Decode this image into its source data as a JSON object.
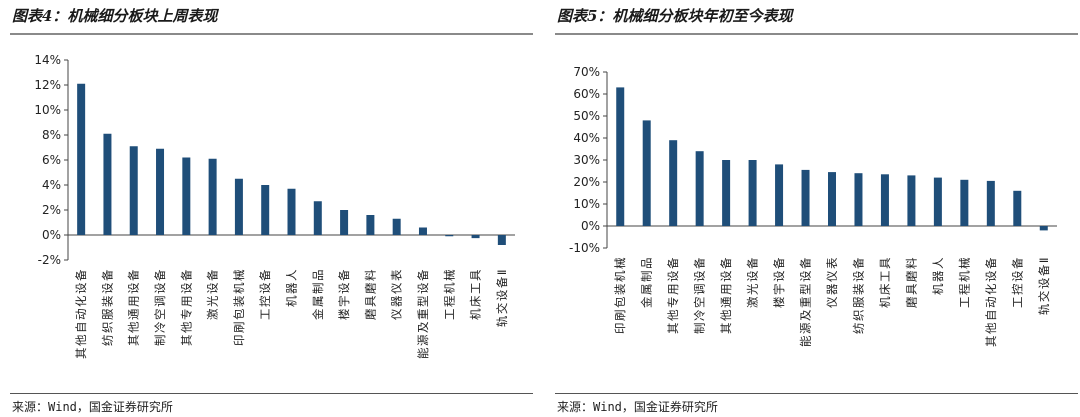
{
  "charts": [
    {
      "title": "图表4：机械细分板块上周表现",
      "source": "来源：Wind，国金证券研究所",
      "color": "#1f4e79",
      "chart_data": {
        "type": "bar",
        "title": "图表4：机械细分板块上周表现",
        "categories": [
          "其他自动化设备",
          "纺织服装设备",
          "其他通用设备",
          "制冷空调设备",
          "其他专用设备",
          "激光设备",
          "印刷包装机械",
          "工控设备",
          "机器人",
          "金属制品",
          "楼宇设备",
          "磨具磨料",
          "仪器仪表",
          "能源及重型设备",
          "工程机械",
          "机床工具",
          "轨交设备Ⅱ"
        ],
        "values": [
          12.1,
          8.1,
          7.1,
          6.9,
          6.2,
          6.1,
          4.5,
          4.0,
          3.7,
          2.7,
          2.0,
          1.6,
          1.3,
          0.6,
          -0.1,
          -0.25,
          -0.8
        ],
        "ylim": [
          -2,
          14
        ],
        "yticks": [
          -2,
          0,
          2,
          4,
          6,
          8,
          10,
          12,
          14
        ],
        "tick_format": "percent",
        "xlabel": "",
        "ylabel": ""
      }
    },
    {
      "title": "图表5：机械细分板块年初至今表现",
      "source": "来源：Wind，国金证券研究所",
      "color": "#1f4e79",
      "chart_data": {
        "type": "bar",
        "title": "图表5：机械细分板块年初至今表现",
        "categories": [
          "印刷包装机械",
          "金属制品",
          "其他专用设备",
          "制冷空调设备",
          "其他通用设备",
          "激光设备",
          "楼宇设备",
          "能源及重型设备",
          "仪器仪表",
          "纺织服装设备",
          "机床工具",
          "磨具磨料",
          "机器人",
          "工程机械",
          "其他自动化设备",
          "工控设备",
          "轨交设备Ⅱ"
        ],
        "values": [
          63,
          48,
          39,
          34,
          30,
          30,
          28,
          25.5,
          24.5,
          24,
          23.5,
          23,
          22,
          21,
          20.5,
          16,
          -2
        ],
        "ylim": [
          -10,
          70
        ],
        "yticks": [
          -10,
          0,
          10,
          20,
          30,
          40,
          50,
          60,
          70
        ],
        "tick_format": "percent",
        "xlabel": "",
        "ylabel": ""
      }
    }
  ]
}
